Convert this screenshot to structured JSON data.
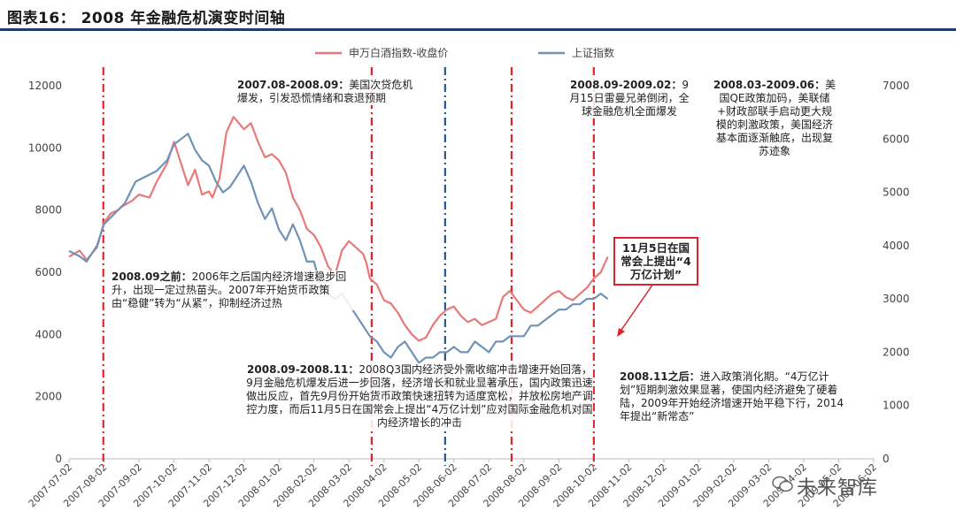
{
  "title": "图表16：  2008 年金融危机演变时间轴",
  "chart_data": {
    "type": "line",
    "title": "2008 年金融危机演变时间轴",
    "legend": [
      "申万白酒指数-收盘价",
      "上证指数"
    ],
    "legend_position": "top",
    "colors": {
      "baijiu": "#e8797a",
      "shanghai": "#6f93b8",
      "vline_red": "#e2232a",
      "vline_blue": "#1f5a96"
    },
    "x_labels": [
      "2007-07-02",
      "2007-08-02",
      "2007-09-02",
      "2007-10-02",
      "2007-11-02",
      "2007-12-02",
      "2008-01-02",
      "2008-02-02",
      "2008-03-02",
      "2008-04-02",
      "2008-05-02",
      "2008-06-02",
      "2008-07-02",
      "2008-08-02",
      "2008-09-02",
      "2008-10-02",
      "2008-11-02",
      "2008-12-02",
      "2009-01-02",
      "2009-02-02",
      "2009-03-02",
      "2009-04-02",
      "2009-05-02",
      "2009-06-02"
    ],
    "y_left_ticks": [
      "0",
      "2000",
      "4000",
      "6000",
      "8000",
      "10000",
      "12000"
    ],
    "y_right_ticks": [
      "0",
      "1000",
      "2000",
      "3000",
      "4000",
      "5000",
      "6000",
      "7000"
    ],
    "ylim_left": [
      0,
      12000
    ],
    "ylim_right": [
      0,
      7000
    ],
    "vlines": [
      {
        "at": 0.98,
        "color": "red"
      },
      {
        "at": 8.65,
        "color": "red"
      },
      {
        "at": 10.75,
        "color": "blue"
      },
      {
        "at": 12.65,
        "color": "red"
      },
      {
        "at": 15.0,
        "color": "red"
      }
    ],
    "series": [
      {
        "name": "申万白酒指数-收盘价",
        "axis": "left",
        "x": [
          0,
          0.3,
          0.5,
          0.8,
          1.0,
          1.2,
          1.4,
          1.5,
          1.8,
          2.0,
          2.3,
          2.5,
          2.8,
          3.0,
          3.2,
          3.4,
          3.6,
          3.8,
          4.0,
          4.1,
          4.3,
          4.5,
          4.7,
          5.0,
          5.2,
          5.4,
          5.6,
          5.8,
          6.0,
          6.2,
          6.4,
          6.6,
          6.8,
          7.0,
          7.2,
          7.4,
          7.6,
          7.8,
          8.0,
          8.2,
          8.4,
          8.5,
          8.6,
          8.8,
          9.0,
          9.2,
          9.4,
          9.6,
          9.8,
          10.0,
          10.2,
          10.4,
          10.6,
          10.8,
          11.0,
          11.2,
          11.4,
          11.6,
          11.8,
          12.0,
          12.2,
          12.4,
          12.6,
          12.8,
          13.0,
          13.2,
          13.4,
          13.6,
          13.8,
          14.0,
          14.2,
          14.4,
          14.6,
          14.8,
          15.0,
          15.2,
          15.4
        ],
        "values": [
          6500,
          6700,
          6400,
          6800,
          7600,
          7900,
          8000,
          8100,
          8300,
          8500,
          8400,
          8900,
          9500,
          10200,
          9500,
          8800,
          9300,
          8500,
          8600,
          8400,
          9000,
          10500,
          11000,
          10600,
          10800,
          10200,
          9700,
          9800,
          9600,
          9200,
          8400,
          8000,
          7400,
          7200,
          6800,
          6200,
          5900,
          6700,
          7000,
          6800,
          6600,
          6300,
          5800,
          5600,
          5100,
          5000,
          4700,
          4300,
          4000,
          3800,
          3900,
          4300,
          4600,
          4800,
          4900,
          4600,
          4400,
          4500,
          4300,
          4400,
          4500,
          5200,
          5400,
          5100,
          4800,
          4700,
          4900,
          5100,
          5300,
          5400,
          5200,
          5100,
          5300,
          5500,
          5800,
          6000,
          6500
        ]
      },
      {
        "name": "上证指数",
        "axis": "right",
        "x": [
          0,
          0.3,
          0.5,
          0.8,
          1.0,
          1.3,
          1.6,
          1.9,
          2.2,
          2.5,
          2.8,
          3.0,
          3.2,
          3.4,
          3.6,
          3.8,
          4.0,
          4.2,
          4.4,
          4.6,
          4.8,
          5.0,
          5.2,
          5.4,
          5.6,
          5.8,
          6.0,
          6.2,
          6.4,
          6.6,
          6.8,
          7.0,
          7.2,
          7.4,
          7.6,
          7.8,
          8.0,
          8.2,
          8.4,
          8.6,
          8.8,
          9.0,
          9.2,
          9.4,
          9.6,
          9.8,
          10.0,
          10.2,
          10.4,
          10.6,
          10.8,
          11.0,
          11.2,
          11.4,
          11.6,
          11.8,
          12.0,
          12.2,
          12.4,
          12.6,
          12.8,
          13.0,
          13.2,
          13.4,
          13.6,
          13.8,
          14.0,
          14.2,
          14.4,
          14.6,
          14.8,
          15.0,
          15.2,
          15.4
        ],
        "values": [
          3900,
          3800,
          3700,
          4000,
          4400,
          4600,
          4800,
          5200,
          5300,
          5400,
          5600,
          5900,
          6000,
          6100,
          5800,
          5600,
          5500,
          5200,
          5000,
          5100,
          5300,
          5500,
          5200,
          4800,
          4500,
          4700,
          4300,
          4100,
          4400,
          4100,
          3700,
          3700,
          3200,
          3100,
          3000,
          3100,
          2900,
          2700,
          2500,
          2300,
          2200,
          2000,
          1900,
          2100,
          2200,
          2000,
          1800,
          1900,
          1900,
          2000,
          2000,
          2100,
          2000,
          2000,
          2200,
          2100,
          2000,
          2200,
          2200,
          2300,
          2300,
          2300,
          2500,
          2500,
          2600,
          2700,
          2800,
          2800,
          2900,
          2900,
          3000,
          3000,
          3100,
          3000
        ]
      }
    ]
  },
  "annotations": {
    "a1_head": "2007.08-2008.09：",
    "a1_body": "美国次贷危机爆发，引发恐慌情绪和衰退预期",
    "a2_head": "2008.09-2009.02：",
    "a2_body": "9月15日雷曼兄弟倒闭，全球金融危机全面爆发",
    "a3_head": "2008.03-2009.06：",
    "a3_body": "美国QE政策加码，美联储+财政部联手启动更大规模的刺激政策，美国经济基本面逐渐触底，出现复苏迹象",
    "a4_head": "2008.09之前：",
    "a4_body": "2006年之后国内经济增速稳步回升，出现一定过热苗头。2007年开始货币政策由“稳健”转为“从紧”，抑制经济过热",
    "a5_head": "2008.09-2008.11：",
    "a5_body": "2008Q3国内经济受外需收缩冲击增速开始回落，9月金融危机爆发后进一步回落，经济增长和就业显著承压，国内政策迅速做出反应，首先9月份开始货币政策快速扭转为适度宽松，并放松房地产调控力度，而后11月5日在国常会上提出“4万亿计划”应对国际金融危机对国内经济增长的冲击",
    "a6_head": "2008.11之后：",
    "a6_body": "进入政策消化期。“4万亿计划”短期刺激效果显著，使国内经济避免了硬着陆，2009年开始经济增速开始平稳下行，2014年提出“新常态”",
    "box_text": "11月5日在国常会上提出“4万亿计划”"
  },
  "watermark": "未来智库"
}
